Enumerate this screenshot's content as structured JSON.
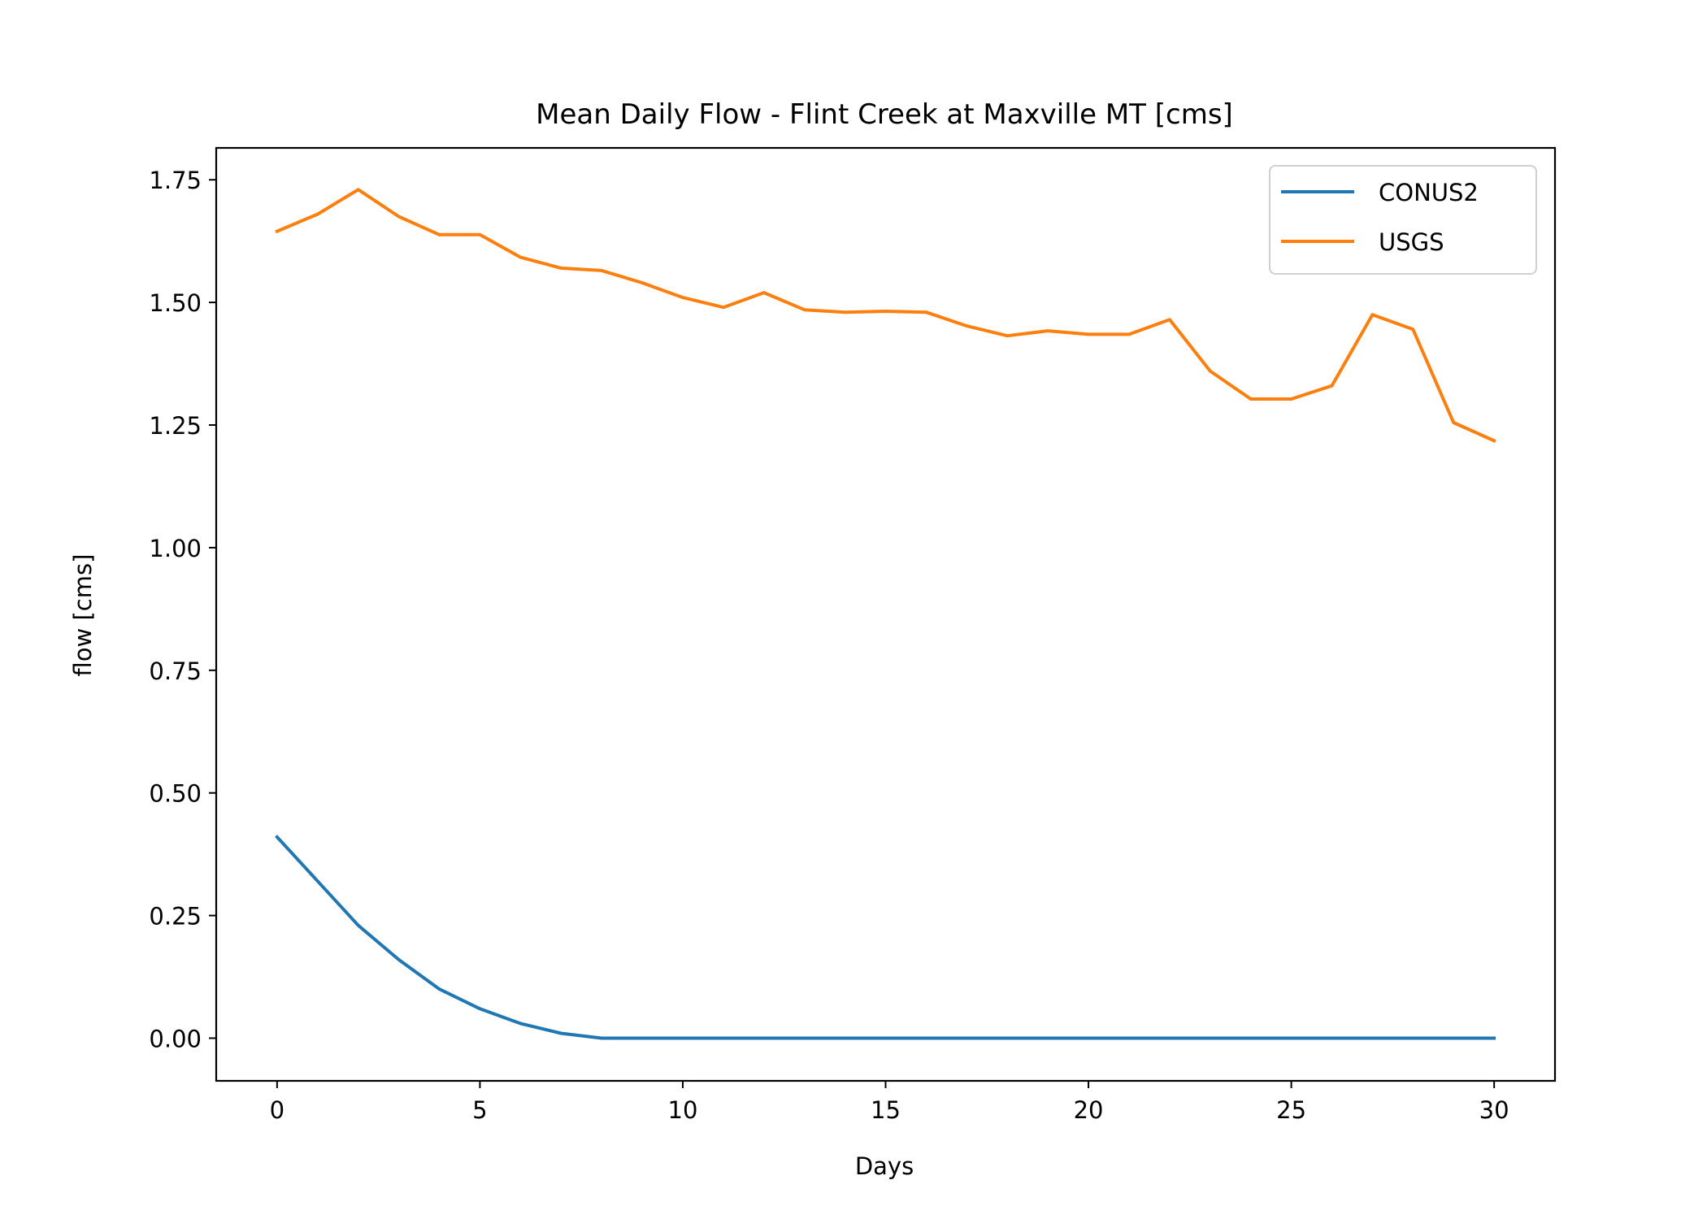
{
  "chart_data": {
    "type": "line",
    "title": "Mean Daily Flow - Flint Creek at Maxville MT [cms]",
    "xlabel": "Days",
    "ylabel": "flow [cms]",
    "xlim": [
      -1.5,
      31.5
    ],
    "ylim": [
      -0.087,
      1.815
    ],
    "xticks": [
      0,
      5,
      10,
      15,
      20,
      25,
      30
    ],
    "xtick_labels": [
      "0",
      "5",
      "10",
      "15",
      "20",
      "25",
      "30"
    ],
    "yticks": [
      0.0,
      0.25,
      0.5,
      0.75,
      1.0,
      1.25,
      1.5,
      1.75
    ],
    "ytick_labels": [
      "0.00",
      "0.25",
      "0.50",
      "0.75",
      "1.00",
      "1.25",
      "1.50",
      "1.75"
    ],
    "grid": false,
    "legend_position": "top-right",
    "x": [
      0,
      1,
      2,
      3,
      4,
      5,
      6,
      7,
      8,
      9,
      10,
      11,
      12,
      13,
      14,
      15,
      16,
      17,
      18,
      19,
      20,
      21,
      22,
      23,
      24,
      25,
      26,
      27,
      28,
      29,
      30
    ],
    "series": [
      {
        "name": "CONUS2",
        "color": "#1f77b4",
        "values": [
          0.41,
          0.32,
          0.23,
          0.16,
          0.1,
          0.06,
          0.03,
          0.01,
          0.0,
          0.0,
          0.0,
          0.0,
          0.0,
          0.0,
          0.0,
          0.0,
          0.0,
          0.0,
          0.0,
          0.0,
          0.0,
          0.0,
          0.0,
          0.0,
          0.0,
          0.0,
          0.0,
          0.0,
          0.0,
          0.0,
          0.0
        ]
      },
      {
        "name": "USGS",
        "color": "#ff7f0e",
        "values": [
          1.645,
          1.68,
          1.73,
          1.675,
          1.638,
          1.638,
          1.592,
          1.57,
          1.565,
          1.54,
          1.51,
          1.49,
          1.52,
          1.485,
          1.48,
          1.482,
          1.48,
          1.452,
          1.432,
          1.442,
          1.435,
          1.435,
          1.465,
          1.36,
          1.303,
          1.303,
          1.33,
          1.475,
          1.445,
          1.255,
          1.218
        ]
      }
    ]
  }
}
